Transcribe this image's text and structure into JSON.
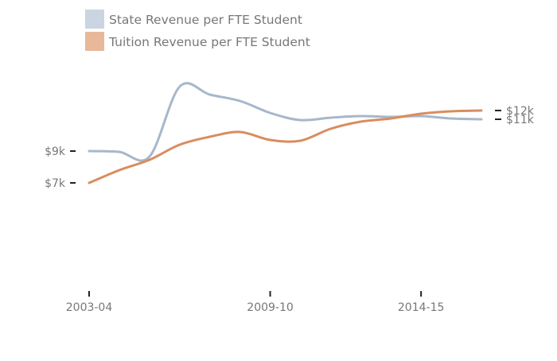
{
  "chart_data": {
    "type": "line",
    "title": "",
    "xlabel": "",
    "ylabel": "",
    "x": [
      "2003-04",
      "2004-05",
      "2005-06",
      "2006-07",
      "2007-08",
      "2008-09",
      "2009-10",
      "2010-11",
      "2011-12",
      "2012-13",
      "2013-14",
      "2014-15",
      "2015-16",
      "2016-17"
    ],
    "x_tick_labels": [
      "2003-04",
      "2009-10",
      "2014-15"
    ],
    "series": [
      {
        "name": "State Revenue per FTE Student",
        "color": "#a7b7cb",
        "legend_color": "#cbd5e1",
        "values": [
          9000,
          8950,
          8650,
          13050,
          12550,
          12150,
          11400,
          10950,
          11100,
          11200,
          11150,
          11200,
          11050,
          11000
        ]
      },
      {
        "name": "Tuition Revenue per FTE Student",
        "color": "#d98d5f",
        "legend_color": "#e8b89a",
        "values": [
          7000,
          7800,
          8450,
          9400,
          9900,
          10200,
          9700,
          9650,
          10400,
          10850,
          11050,
          11350,
          11500,
          11550
        ]
      }
    ],
    "y_ticks_left": [
      {
        "label": "$9k",
        "value": 9000
      },
      {
        "label": "$7k",
        "value": 7000
      }
    ],
    "y_ticks_right": [
      {
        "label": "$12k",
        "value": 11550
      },
      {
        "label": "$11k",
        "value": 11000
      }
    ],
    "ylim": [
      0,
      14000
    ],
    "grid": false,
    "legend_position": "top-left"
  }
}
